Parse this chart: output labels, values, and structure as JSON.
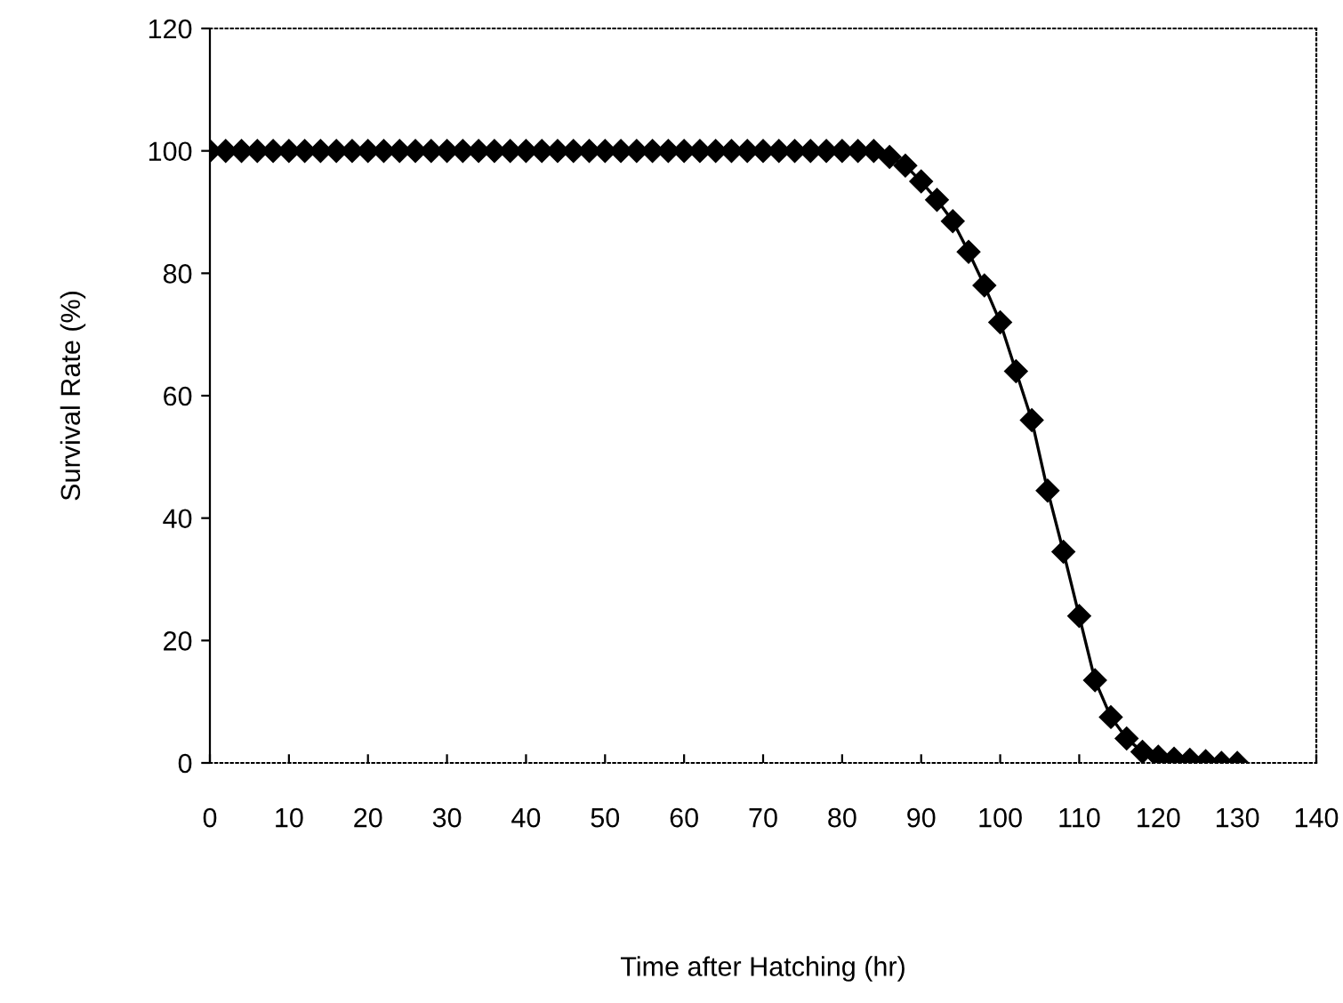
{
  "chart_data": {
    "type": "line",
    "xlabel": "Time after Hatching (hr)",
    "ylabel": "Survival Rate (%)",
    "x": [
      0,
      2,
      4,
      6,
      8,
      10,
      12,
      14,
      16,
      18,
      20,
      22,
      24,
      26,
      28,
      30,
      32,
      34,
      36,
      38,
      40,
      42,
      44,
      46,
      48,
      50,
      52,
      54,
      56,
      58,
      60,
      62,
      64,
      66,
      68,
      70,
      72,
      74,
      76,
      78,
      80,
      82,
      84,
      86,
      88,
      90,
      92,
      94,
      96,
      98,
      100,
      102,
      104,
      106,
      108,
      110,
      112,
      114,
      116,
      118,
      120,
      122,
      124,
      126,
      128,
      130
    ],
    "series": [
      {
        "color": "#000000",
        "values": [
          100,
          100,
          100,
          100,
          100,
          100,
          100,
          100,
          100,
          100,
          100,
          100,
          100,
          100,
          100,
          100,
          100,
          100,
          100,
          100,
          100,
          100,
          100,
          100,
          100,
          100,
          100,
          100,
          100,
          100,
          100,
          100,
          100,
          100,
          100,
          100,
          100,
          100,
          100,
          100,
          100,
          100,
          100,
          99,
          97.6,
          95,
          92,
          88.5,
          83.5,
          78,
          72,
          64,
          56,
          44.5,
          34.5,
          24,
          13.5,
          7.5,
          4,
          1.8,
          1,
          0.7,
          0.5,
          0.3,
          0,
          0
        ]
      }
    ],
    "xlim": [
      0,
      140
    ],
    "xticks": [
      0,
      10,
      20,
      30,
      40,
      50,
      60,
      70,
      80,
      90,
      100,
      110,
      120,
      130,
      140
    ],
    "ylim": [
      0,
      120
    ],
    "yticks": [
      0,
      20,
      40,
      60,
      80,
      100,
      120
    ],
    "marker": "diamond",
    "line_style": "solid",
    "grid": false,
    "legend": false
  }
}
